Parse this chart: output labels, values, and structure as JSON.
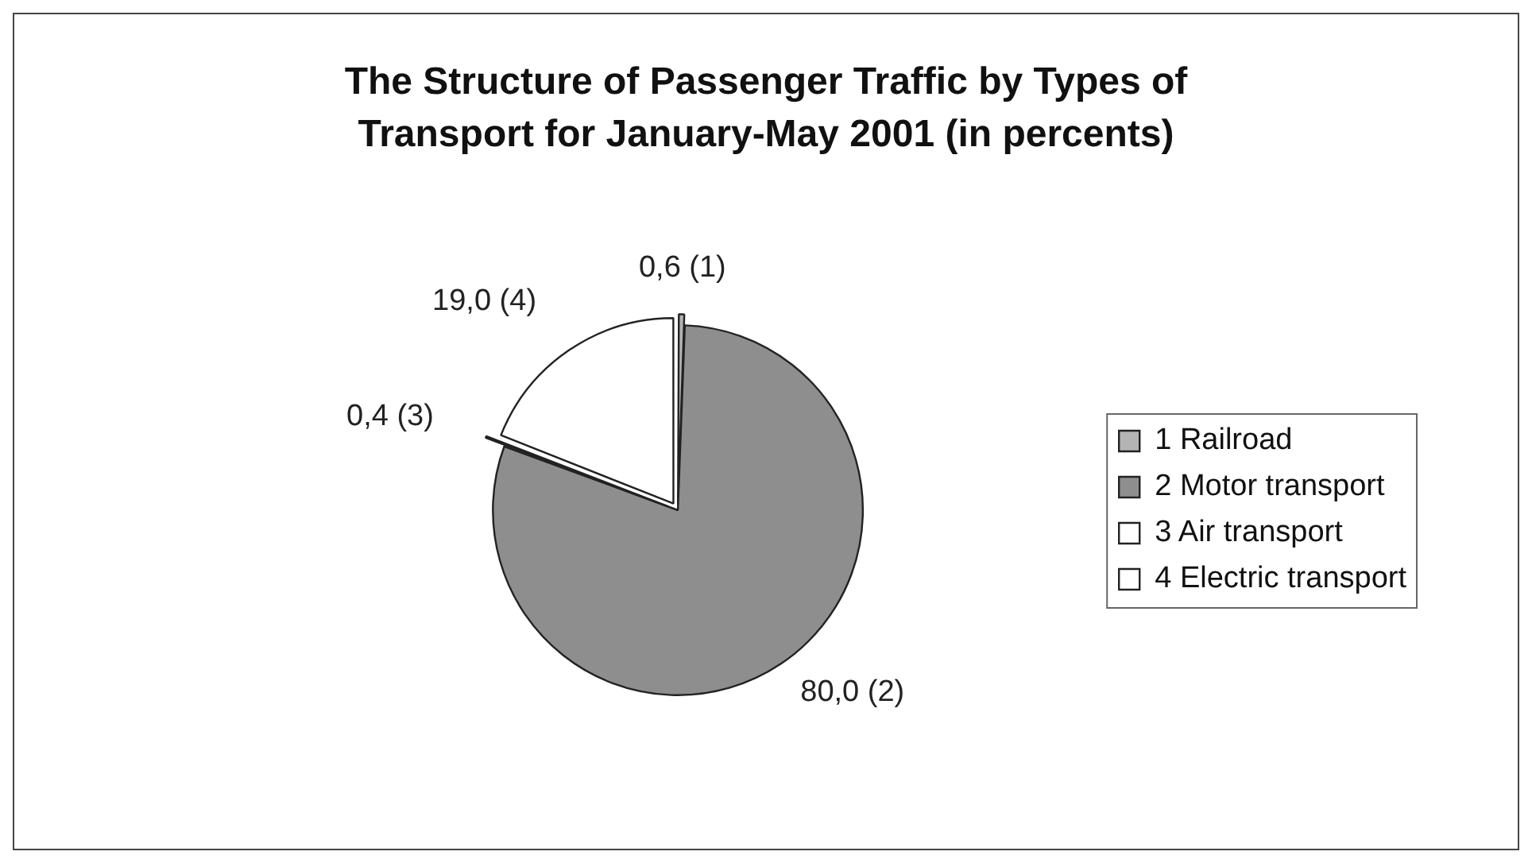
{
  "chart_data": {
    "type": "pie",
    "title": "The Structure of Passenger Traffic by Types of Transport for January-May 2001 (in percents)",
    "categories": [
      "1 Railroad",
      "2 Motor transport",
      "3 Air transport",
      "4 Electric transport"
    ],
    "values": [
      0.6,
      80.0,
      0.4,
      19.0
    ],
    "value_labels": [
      "0,6 (1)",
      "80,0 (2)",
      "0,4 (3)",
      "19,0 (4)"
    ],
    "colors": [
      "#b4b4b4",
      "#8e8e8e",
      "#ffffff",
      "#ffffff"
    ],
    "legend": "right"
  }
}
